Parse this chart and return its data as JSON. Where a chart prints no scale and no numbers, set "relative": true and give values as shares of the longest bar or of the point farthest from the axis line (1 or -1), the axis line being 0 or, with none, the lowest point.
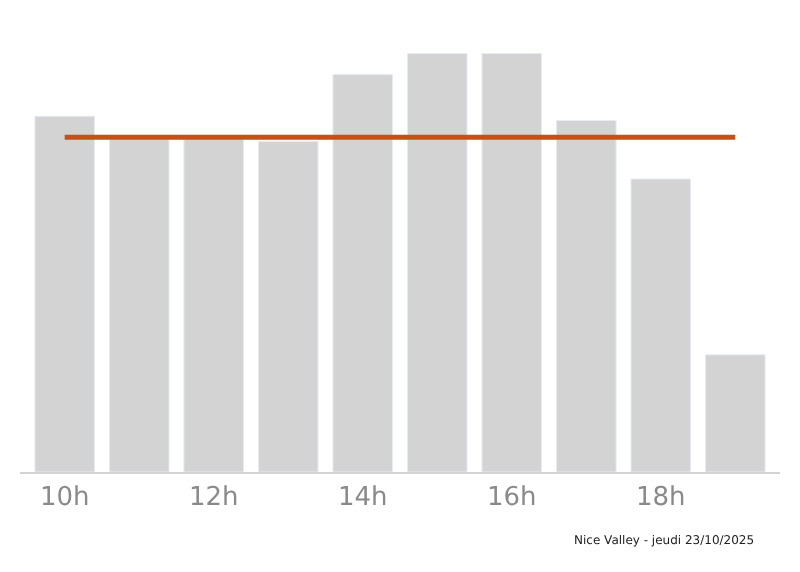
{
  "chart_data": {
    "type": "bar",
    "relative": true,
    "categories": [
      "10h",
      null,
      "12h",
      null,
      "14h",
      null,
      "16h",
      null,
      "18h",
      null
    ],
    "values": [
      0.85,
      0.8,
      0.8,
      0.79,
      0.95,
      1.0,
      1.0,
      0.84,
      0.7,
      0.28
    ],
    "color": "#d3d3d3",
    "ref_lines": [
      {
        "axis": "y",
        "value": 0.8,
        "color": "#c5511a"
      }
    ],
    "annotations": [
      "Nice Valley - jeudi 23/10/2025"
    ]
  }
}
